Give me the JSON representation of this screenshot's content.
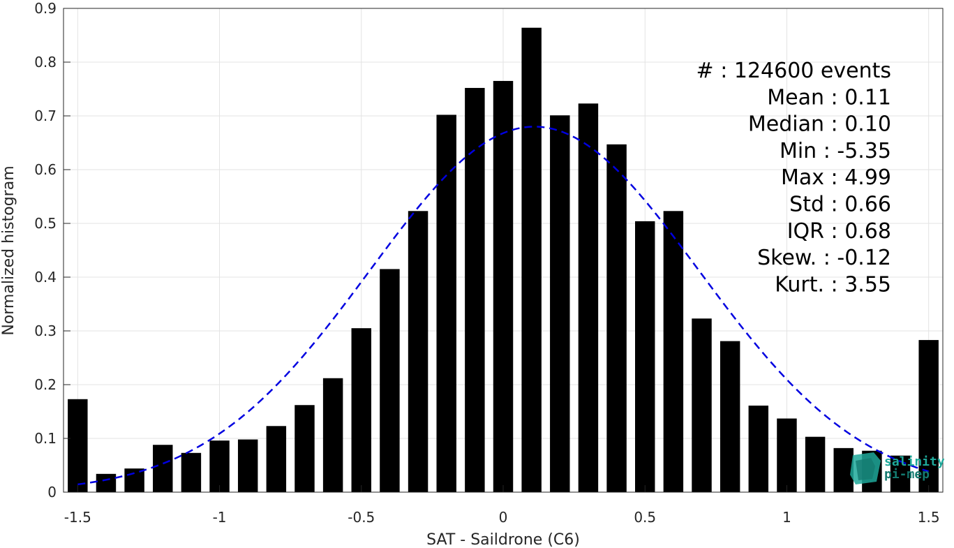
{
  "chart_data": {
    "type": "bar",
    "xlabel": "SAT - Saildrone (C6)",
    "ylabel": "Normalized histogram",
    "xlim": [
      -1.55,
      1.55
    ],
    "ylim": [
      0,
      0.9
    ],
    "xticks": [
      -1.5,
      -1,
      -0.5,
      0,
      0.5,
      1,
      1.5
    ],
    "xtick_labels": [
      "-1.5",
      "-1",
      "-0.5",
      "0",
      "0.5",
      "1",
      "1.5"
    ],
    "yticks": [
      0,
      0.1,
      0.2,
      0.3,
      0.4,
      0.5,
      0.6,
      0.7,
      0.8,
      0.9
    ],
    "ytick_labels": [
      "0",
      "0.1",
      "0.2",
      "0.3",
      "0.4",
      "0.5",
      "0.6",
      "0.7",
      "0.8",
      "0.9"
    ],
    "grid": true,
    "bar_color": "#000000",
    "bar_width": 0.07,
    "bins": [
      -1.5,
      -1.4,
      -1.3,
      -1.2,
      -1.1,
      -1.0,
      -0.9,
      -0.8,
      -0.7,
      -0.6,
      -0.5,
      -0.4,
      -0.3,
      -0.2,
      -0.1,
      0.0,
      0.1,
      0.2,
      0.3,
      0.4,
      0.5,
      0.6,
      0.7,
      0.8,
      0.9,
      1.0,
      1.1,
      1.2,
      1.3,
      1.4,
      1.5
    ],
    "values": [
      0.173,
      0.034,
      0.044,
      0.088,
      0.073,
      0.096,
      0.098,
      0.123,
      0.162,
      0.212,
      0.305,
      0.415,
      0.523,
      0.702,
      0.752,
      0.765,
      0.864,
      0.701,
      0.723,
      0.647,
      0.504,
      0.523,
      0.323,
      0.281,
      0.161,
      0.137,
      0.103,
      0.082,
      0.077,
      0.068,
      0.283
    ],
    "fit": {
      "type": "normal",
      "color": "#0000e0",
      "style": "dashed",
      "mean": 0.11,
      "std": 0.58,
      "peak": 0.68,
      "x_range": [
        -1.5,
        1.5
      ]
    },
    "stats": {
      "lines": [
        "#  : 124600 events",
        "Mean : 0.11",
        "Median : 0.10",
        "Min : -5.35",
        "Max : 4.99",
        "Std : 0.66",
        "IQR : 0.68",
        "Skew. : -0.12",
        "Kurt. : 3.55"
      ]
    }
  },
  "logo": {
    "line1": "salinity",
    "line2": "pi-mep",
    "color": "#1fa89a"
  }
}
